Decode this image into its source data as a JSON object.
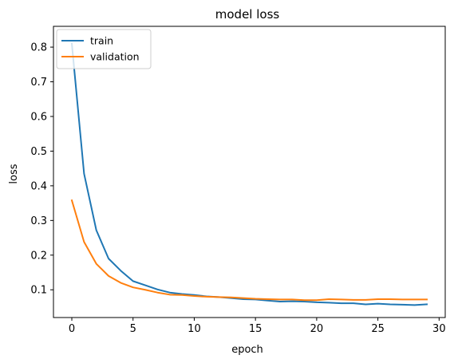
{
  "chart_data": {
    "type": "line",
    "title": "model loss",
    "xlabel": "epoch",
    "ylabel": "loss",
    "xlim": [
      -1.5,
      30.5
    ],
    "ylim": [
      0.02,
      0.86
    ],
    "x": [
      0,
      1,
      2,
      3,
      4,
      5,
      6,
      7,
      8,
      9,
      10,
      11,
      12,
      13,
      14,
      15,
      16,
      17,
      18,
      19,
      20,
      21,
      22,
      23,
      24,
      25,
      26,
      27,
      28,
      29
    ],
    "xticks": [
      0,
      5,
      10,
      15,
      20,
      25,
      30
    ],
    "yticks": [
      0.1,
      0.2,
      0.3,
      0.4,
      0.5,
      0.6,
      0.7,
      0.8
    ],
    "grid": false,
    "legend_position": "upper left",
    "series": [
      {
        "name": "train",
        "color": "#1f77b4",
        "values": [
          0.81,
          0.435,
          0.272,
          0.19,
          0.155,
          0.125,
          0.113,
          0.101,
          0.092,
          0.088,
          0.085,
          0.081,
          0.079,
          0.076,
          0.073,
          0.072,
          0.069,
          0.066,
          0.067,
          0.066,
          0.064,
          0.063,
          0.061,
          0.061,
          0.058,
          0.06,
          0.058,
          0.057,
          0.056,
          0.058
        ]
      },
      {
        "name": "validation",
        "color": "#ff7f0e",
        "values": [
          0.358,
          0.238,
          0.175,
          0.14,
          0.12,
          0.107,
          0.1,
          0.092,
          0.086,
          0.085,
          0.082,
          0.08,
          0.079,
          0.078,
          0.076,
          0.074,
          0.073,
          0.072,
          0.072,
          0.07,
          0.07,
          0.073,
          0.072,
          0.071,
          0.071,
          0.073,
          0.073,
          0.072,
          0.072,
          0.072
        ]
      }
    ]
  }
}
